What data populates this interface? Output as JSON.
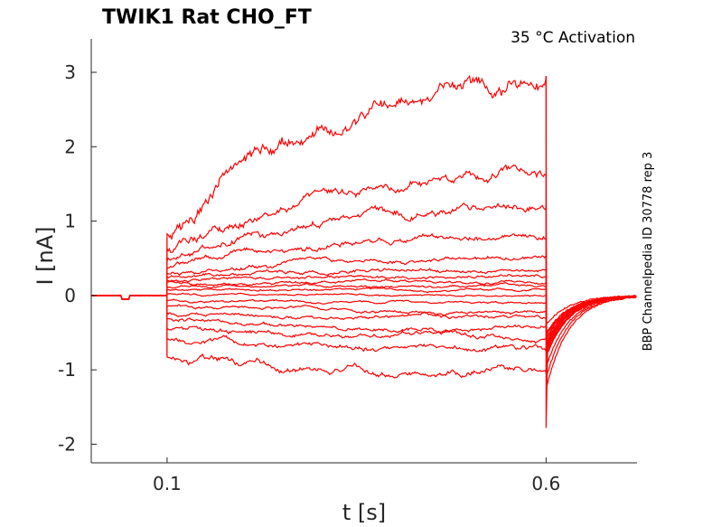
{
  "chart_data": {
    "type": "line",
    "title": "TWIK1  Rat  CHO_FT",
    "annotation": "35 °C  Activation",
    "side_label": "BBP Channelpedia ID 30778 rep 3",
    "xlabel": "t [s]",
    "ylabel": "I [nA]",
    "xlim": [
      0.0,
      0.72
    ],
    "ylim": [
      -2.25,
      3.45
    ],
    "x_ticks": [
      0.1,
      0.6
    ],
    "x_tick_labels": [
      "0.1",
      "0.6"
    ],
    "y_ticks": [
      -2,
      -1,
      0,
      1,
      2,
      3
    ],
    "y_tick_labels": [
      "-2",
      "-1",
      "0",
      "1",
      "2",
      "3"
    ],
    "grid": false,
    "series_color": "#ff0000",
    "step_start": 0.1,
    "step_end": 0.6,
    "series": [
      {
        "start": 0.78,
        "end": 2.95
      },
      {
        "start": 0.6,
        "end": 1.6
      },
      {
        "start": 0.45,
        "end": 1.22
      },
      {
        "start": 0.38,
        "end": 0.8
      },
      {
        "start": 0.3,
        "end": 0.5
      },
      {
        "start": 0.25,
        "end": 0.35
      },
      {
        "start": 0.2,
        "end": 0.25
      },
      {
        "start": 0.17,
        "end": 0.18
      },
      {
        "start": 0.12,
        "end": 0.12
      },
      {
        "start": 0.07,
        "end": 0.07
      },
      {
        "start": 0.02,
        "end": 0.0
      },
      {
        "start": -0.07,
        "end": -0.1
      },
      {
        "start": -0.15,
        "end": -0.22
      },
      {
        "start": -0.23,
        "end": -0.33
      },
      {
        "start": -0.32,
        "end": -0.45
      },
      {
        "start": -0.45,
        "end": -0.57
      },
      {
        "start": -0.58,
        "end": -0.75
      },
      {
        "start": -0.82,
        "end": -1.05
      }
    ]
  }
}
